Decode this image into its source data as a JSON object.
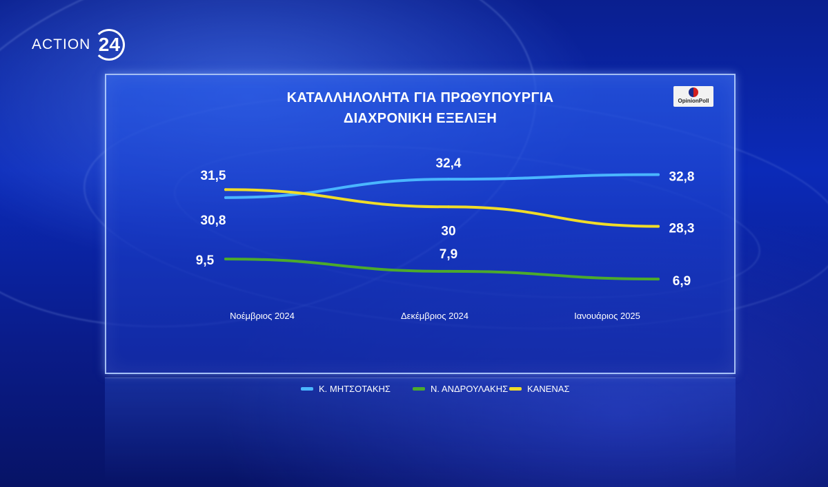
{
  "channel_logo": {
    "word": "ACTION",
    "number": "24"
  },
  "pollster": "OpinionPoll",
  "chart_data": {
    "type": "line",
    "title": "ΚΑΤΑΛΛΗΛΟΛΗΤΑ ΓΙΑ ΠΡΩΘΥΠΟΥΡΓΙΑ",
    "subtitle": "ΔΙΑΧΡΟΝΙΚΗ ΕΞΕΛΙΞΗ",
    "categories": [
      "Νοέμβριος 2024",
      "Δεκέμβριος 2024",
      "Ιανουάριος 2025"
    ],
    "series": [
      {
        "name": "Κ. ΜΗΤΣΟΤΑΚΗΣ",
        "color": "#4ab6ff",
        "values": [
          30.8,
          32.4,
          32.8
        ],
        "labels": [
          "30,8",
          "32,4",
          "32,8"
        ]
      },
      {
        "name": "Ν. ΑΝΔΡΟΥΛΑΚΗΣ",
        "color": "#4caa2c",
        "values": [
          9.5,
          7.9,
          6.9
        ],
        "labels": [
          "9,5",
          "7,9",
          "6,9"
        ]
      },
      {
        "name": "ΚΑΝΕΝΑΣ",
        "color": "#f0dc28",
        "values": [
          31.5,
          30,
          28.3
        ],
        "labels": [
          "31,5",
          "30",
          "28,3"
        ]
      }
    ],
    "legend_position": "bottom",
    "grid": false
  }
}
